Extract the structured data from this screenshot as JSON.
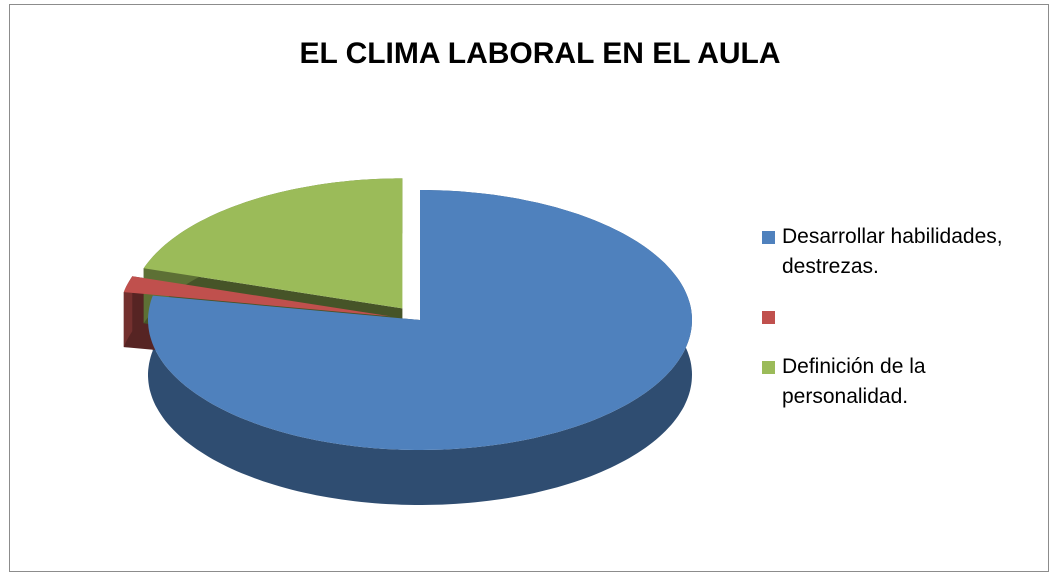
{
  "chart_data": {
    "type": "pie3d",
    "title": "EL CLIMA LABORAL EN EL AULA",
    "categories": [
      "Desarrollar habilidades, destrezas.",
      null,
      "Definición de la personalidad."
    ],
    "values": [
      78,
      2,
      20
    ],
    "colors": [
      "#4f81bd",
      "#c0504d",
      "#9bbb59"
    ],
    "legend": "right"
  }
}
